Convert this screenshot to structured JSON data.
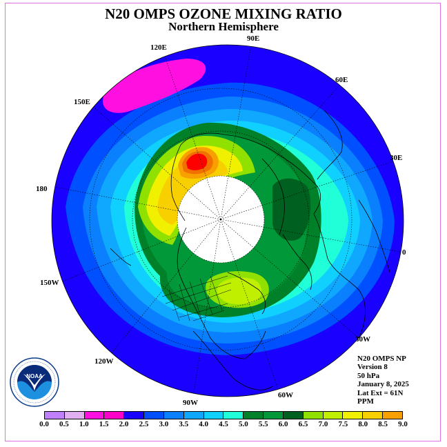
{
  "title": "N20 OMPS OZONE MIXING RATIO",
  "subtitle": "Northern Hemisphere",
  "longitude_labels": {
    "lon_90e": "90E",
    "lon_60e": "60E",
    "lon_30e": "30E",
    "lon_0": "0",
    "lon_30w": "30W",
    "lon_60w": "60W",
    "lon_90w": "90W",
    "lon_120w": "120W",
    "lon_150w": "150W",
    "lon_180": "180",
    "lon_150e": "150E",
    "lon_120e": "120E"
  },
  "info": {
    "product": "N20 OMPS NP",
    "version": "Version 8",
    "level": "50 hPa",
    "date": "January 8, 2025",
    "lat_ext": "Lat Ext = 61N",
    "units": "PPM"
  },
  "logo": {
    "text": "NOAA",
    "ring_text": "NATIONAL OCEANIC AND ATMOSPHERIC ADMINISTRATION U.S. DEPARTMENT OF COMMERCE"
  },
  "colorbar": {
    "colors": [
      "#c080ff",
      "#e0b0f0",
      "#ff10e0",
      "#ff00c8",
      "#1a00ff",
      "#0050ff",
      "#0a80ff",
      "#10a8ff",
      "#10d0ff",
      "#20ffd8",
      "#008028",
      "#009838",
      "#006020",
      "#90e000",
      "#c0f000",
      "#f0f000",
      "#f8d000",
      "#f8a000",
      "#f07000",
      "#ff0000",
      "#a05040"
    ],
    "ticks": [
      "0.0",
      "0.5",
      "1.0",
      "1.5",
      "2.0",
      "2.5",
      "3.0",
      "3.5",
      "4.0",
      "4.5",
      "5.0",
      "5.5",
      "6.0",
      "6.5",
      "7.0",
      "7.5",
      "8.0",
      "8.5",
      "9.0"
    ]
  }
}
